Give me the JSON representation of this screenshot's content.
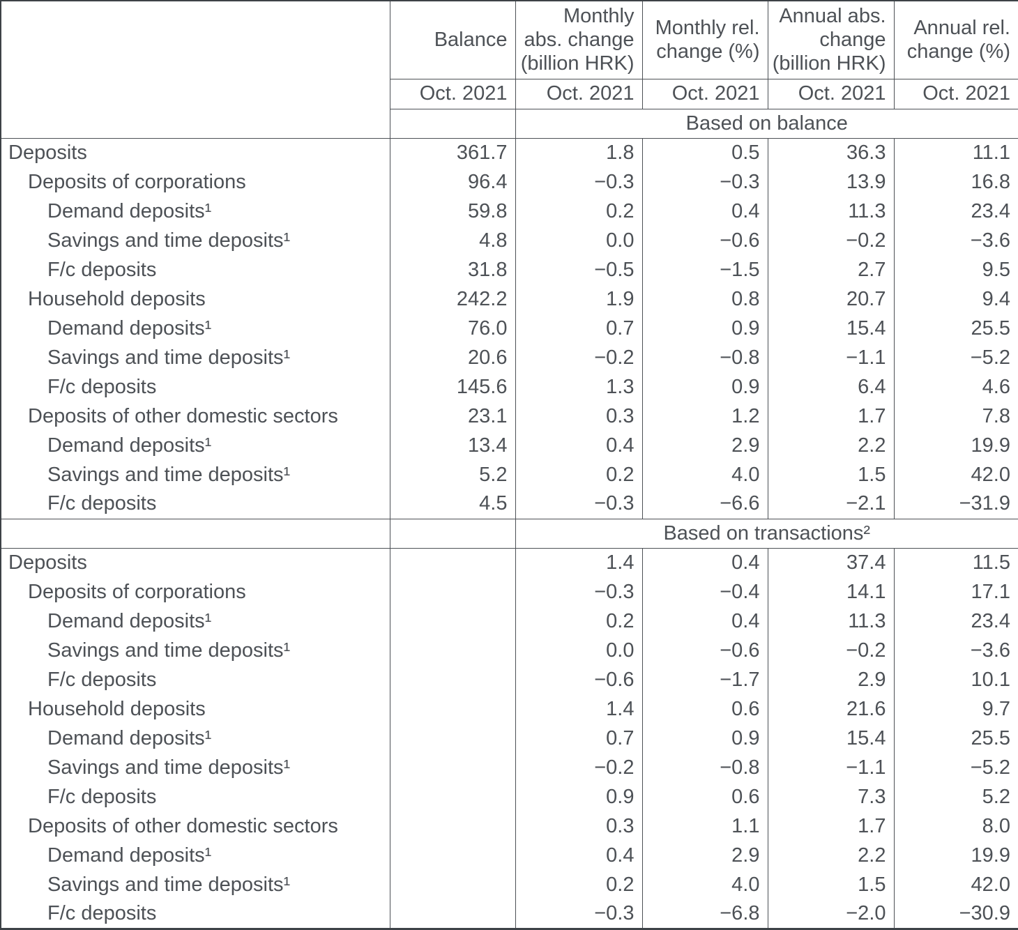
{
  "table": {
    "columns": [
      {
        "key": "balance",
        "title_lines": [
          "Balance"
        ],
        "period": "Oct. 2021"
      },
      {
        "key": "monthly_abs_change",
        "title_lines": [
          "Monthly",
          "abs. change",
          "(billion HRK)"
        ],
        "period": "Oct. 2021"
      },
      {
        "key": "monthly_rel_change",
        "title_lines": [
          "Monthly rel.",
          "change (%)"
        ],
        "period": "Oct. 2021"
      },
      {
        "key": "annual_abs_change",
        "title_lines": [
          "Annual abs.",
          "change",
          "(billion HRK)"
        ],
        "period": "Oct. 2021"
      },
      {
        "key": "annual_rel_change",
        "title_lines": [
          "Annual rel.",
          "change (%)"
        ],
        "period": "Oct. 2021"
      }
    ],
    "sections": [
      {
        "label": "Based on balance",
        "rows": [
          {
            "label": "Deposits",
            "indent": 0,
            "values": [
              "361.7",
              "1.8",
              "0.5",
              "36.3",
              "11.1"
            ]
          },
          {
            "label": "Deposits of corporations",
            "indent": 1,
            "values": [
              "96.4",
              "−0.3",
              "−0.3",
              "13.9",
              "16.8"
            ]
          },
          {
            "label": "Demand deposits¹",
            "indent": 2,
            "values": [
              "59.8",
              "0.2",
              "0.4",
              "11.3",
              "23.4"
            ]
          },
          {
            "label": "Savings and time deposits¹",
            "indent": 2,
            "values": [
              "4.8",
              "0.0",
              "−0.6",
              "−0.2",
              "−3.6"
            ]
          },
          {
            "label": "F/c deposits",
            "indent": 2,
            "values": [
              "31.8",
              "−0.5",
              "−1.5",
              "2.7",
              "9.5"
            ]
          },
          {
            "label": "Household deposits",
            "indent": 1,
            "values": [
              "242.2",
              "1.9",
              "0.8",
              "20.7",
              "9.4"
            ]
          },
          {
            "label": "Demand deposits¹",
            "indent": 2,
            "values": [
              "76.0",
              "0.7",
              "0.9",
              "15.4",
              "25.5"
            ]
          },
          {
            "label": "Savings and time deposits¹",
            "indent": 2,
            "values": [
              "20.6",
              "−0.2",
              "−0.8",
              "−1.1",
              "−5.2"
            ]
          },
          {
            "label": "F/c deposits",
            "indent": 2,
            "values": [
              "145.6",
              "1.3",
              "0.9",
              "6.4",
              "4.6"
            ]
          },
          {
            "label": "Deposits of other domestic sectors",
            "indent": 1,
            "values": [
              "23.1",
              "0.3",
              "1.2",
              "1.7",
              "7.8"
            ]
          },
          {
            "label": "Demand deposits¹",
            "indent": 2,
            "values": [
              "13.4",
              "0.4",
              "2.9",
              "2.2",
              "19.9"
            ]
          },
          {
            "label": "Savings and time deposits¹",
            "indent": 2,
            "values": [
              "5.2",
              "0.2",
              "4.0",
              "1.5",
              "42.0"
            ]
          },
          {
            "label": "F/c deposits",
            "indent": 2,
            "values": [
              "4.5",
              "−0.3",
              "−6.6",
              "−2.1",
              "−31.9"
            ]
          }
        ]
      },
      {
        "label": "Based on transactions²",
        "rows": [
          {
            "label": "Deposits",
            "indent": 0,
            "values": [
              "",
              "1.4",
              "0.4",
              "37.4",
              "11.5"
            ]
          },
          {
            "label": "Deposits of corporations",
            "indent": 1,
            "values": [
              "",
              "−0.3",
              "−0.4",
              "14.1",
              "17.1"
            ]
          },
          {
            "label": "Demand deposits¹",
            "indent": 2,
            "values": [
              "",
              "0.2",
              "0.4",
              "11.3",
              "23.4"
            ]
          },
          {
            "label": "Savings and time deposits¹",
            "indent": 2,
            "values": [
              "",
              "0.0",
              "−0.6",
              "−0.2",
              "−3.6"
            ]
          },
          {
            "label": "F/c deposits",
            "indent": 2,
            "values": [
              "",
              "−0.6",
              "−1.7",
              "2.9",
              "10.1"
            ]
          },
          {
            "label": "Household deposits",
            "indent": 1,
            "values": [
              "",
              "1.4",
              "0.6",
              "21.6",
              "9.7"
            ]
          },
          {
            "label": "Demand deposits¹",
            "indent": 2,
            "values": [
              "",
              "0.7",
              "0.9",
              "15.4",
              "25.5"
            ]
          },
          {
            "label": "Savings and time deposits¹",
            "indent": 2,
            "values": [
              "",
              "−0.2",
              "−0.8",
              "−1.1",
              "−5.2"
            ]
          },
          {
            "label": "F/c deposits",
            "indent": 2,
            "values": [
              "",
              "0.9",
              "0.6",
              "7.3",
              "5.2"
            ]
          },
          {
            "label": "Deposits of other domestic sectors",
            "indent": 1,
            "values": [
              "",
              "0.3",
              "1.1",
              "1.7",
              "8.0"
            ]
          },
          {
            "label": "Demand deposits¹",
            "indent": 2,
            "values": [
              "",
              "0.4",
              "2.9",
              "2.2",
              "19.9"
            ]
          },
          {
            "label": "Savings and time deposits¹",
            "indent": 2,
            "values": [
              "",
              "0.2",
              "4.0",
              "1.5",
              "42.0"
            ]
          },
          {
            "label": "F/c deposits",
            "indent": 2,
            "values": [
              "",
              "−0.3",
              "−6.8",
              "−2.0",
              "−30.9"
            ]
          }
        ]
      }
    ]
  }
}
